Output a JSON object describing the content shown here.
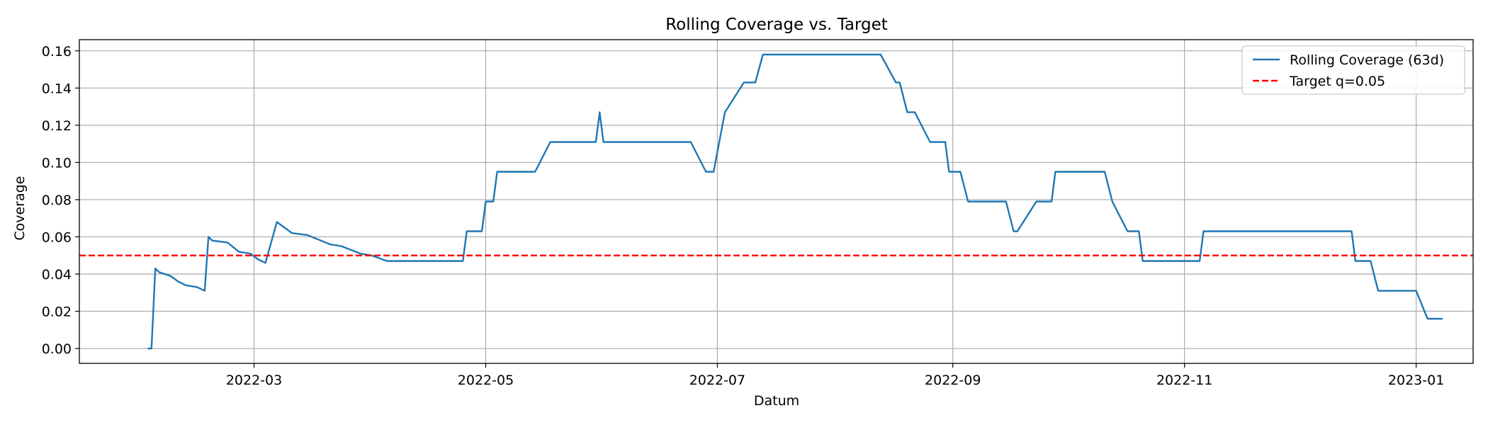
{
  "chart_data": {
    "type": "line",
    "title": "Rolling Coverage vs. Target",
    "xlabel": "Datum",
    "ylabel": "Coverage",
    "xlim": [
      "2022-01-14",
      "2023-01-16"
    ],
    "ylim": [
      -0.008,
      0.166
    ],
    "grid": true,
    "legend_position": "top-right",
    "x_ticks": [
      "2022-03-01",
      "2022-05-01",
      "2022-07-01",
      "2022-09-01",
      "2022-11-01",
      "2023-01-01"
    ],
    "x_tick_labels": [
      "2022-03",
      "2022-05",
      "2022-07",
      "2022-09",
      "2022-11",
      "2023-01"
    ],
    "y_ticks": [
      0.0,
      0.02,
      0.04,
      0.06,
      0.08,
      0.1,
      0.12,
      0.14,
      0.16
    ],
    "y_tick_labels": [
      "0.00",
      "0.02",
      "0.04",
      "0.06",
      "0.08",
      "0.10",
      "0.12",
      "0.14",
      "0.16"
    ],
    "series": [
      {
        "name": "Rolling Coverage (63d)",
        "color": "#1f77b4",
        "style": "solid",
        "points": [
          [
            "2022-02-01",
            0.0
          ],
          [
            "2022-02-02",
            0.0
          ],
          [
            "2022-02-03",
            0.043
          ],
          [
            "2022-02-04",
            0.041
          ],
          [
            "2022-02-07",
            0.039
          ],
          [
            "2022-02-09",
            0.036
          ],
          [
            "2022-02-11",
            0.034
          ],
          [
            "2022-02-14",
            0.033
          ],
          [
            "2022-02-16",
            0.031
          ],
          [
            "2022-02-17",
            0.06
          ],
          [
            "2022-02-18",
            0.058
          ],
          [
            "2022-02-22",
            0.057
          ],
          [
            "2022-02-25",
            0.052
          ],
          [
            "2022-02-28",
            0.051
          ],
          [
            "2022-03-02",
            0.048
          ],
          [
            "2022-03-04",
            0.046
          ],
          [
            "2022-03-07",
            0.068
          ],
          [
            "2022-03-11",
            0.062
          ],
          [
            "2022-03-15",
            0.061
          ],
          [
            "2022-03-21",
            0.056
          ],
          [
            "2022-03-24",
            0.055
          ],
          [
            "2022-03-29",
            0.051
          ],
          [
            "2022-04-01",
            0.05
          ],
          [
            "2022-04-05",
            0.047
          ],
          [
            "2022-04-25",
            0.047
          ],
          [
            "2022-04-26",
            0.063
          ],
          [
            "2022-04-30",
            0.063
          ],
          [
            "2022-05-01",
            0.079
          ],
          [
            "2022-05-03",
            0.079
          ],
          [
            "2022-05-04",
            0.095
          ],
          [
            "2022-05-14",
            0.095
          ],
          [
            "2022-05-18",
            0.111
          ],
          [
            "2022-05-30",
            0.111
          ],
          [
            "2022-05-31",
            0.127
          ],
          [
            "2022-06-01",
            0.111
          ],
          [
            "2022-06-24",
            0.111
          ],
          [
            "2022-06-28",
            0.095
          ],
          [
            "2022-06-30",
            0.095
          ],
          [
            "2022-07-03",
            0.127
          ],
          [
            "2022-07-08",
            0.143
          ],
          [
            "2022-07-11",
            0.143
          ],
          [
            "2022-07-13",
            0.158
          ],
          [
            "2022-08-13",
            0.158
          ],
          [
            "2022-08-17",
            0.143
          ],
          [
            "2022-08-18",
            0.143
          ],
          [
            "2022-08-20",
            0.127
          ],
          [
            "2022-08-22",
            0.127
          ],
          [
            "2022-08-26",
            0.111
          ],
          [
            "2022-08-30",
            0.111
          ],
          [
            "2022-08-31",
            0.095
          ],
          [
            "2022-09-03",
            0.095
          ],
          [
            "2022-09-05",
            0.079
          ],
          [
            "2022-09-15",
            0.079
          ],
          [
            "2022-09-17",
            0.063
          ],
          [
            "2022-09-18",
            0.063
          ],
          [
            "2022-09-23",
            0.079
          ],
          [
            "2022-09-27",
            0.079
          ],
          [
            "2022-09-28",
            0.095
          ],
          [
            "2022-10-11",
            0.095
          ],
          [
            "2022-10-13",
            0.079
          ],
          [
            "2022-10-17",
            0.063
          ],
          [
            "2022-10-20",
            0.063
          ],
          [
            "2022-10-21",
            0.047
          ],
          [
            "2022-11-05",
            0.047
          ],
          [
            "2022-11-06",
            0.063
          ],
          [
            "2022-12-15",
            0.063
          ],
          [
            "2022-12-16",
            0.047
          ],
          [
            "2022-12-20",
            0.047
          ],
          [
            "2022-12-22",
            0.031
          ],
          [
            "2023-01-01",
            0.031
          ],
          [
            "2023-01-04",
            0.016
          ],
          [
            "2023-01-08",
            0.016
          ]
        ]
      },
      {
        "name": "Target q=0.05",
        "color": "#ff0000",
        "style": "dashed",
        "constant": 0.05
      }
    ]
  }
}
